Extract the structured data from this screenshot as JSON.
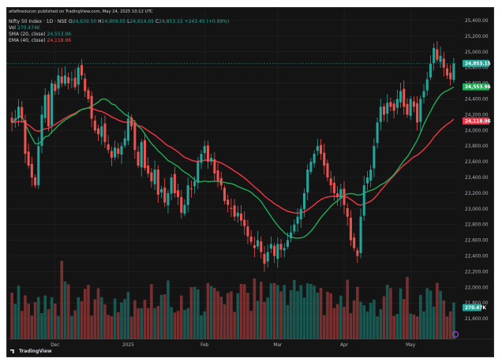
{
  "publisher_line": "alfafineducon published on TradingView.com, May 24, 2025 10:12 UTC",
  "legend": {
    "symbol": "Nifty 50 Index · 1D · NSE",
    "ohlc": [
      {
        "label": "O",
        "value": "24,639.50"
      },
      {
        "label": "H",
        "value": "24,909.05"
      },
      {
        "label": "L",
        "value": "24,614.05"
      },
      {
        "label": "C",
        "value": "24,853.15"
      }
    ],
    "change": "+243.45 (+0.99%)",
    "vol_label": "Vol",
    "vol_value": "270.474K",
    "sma_label": "SMA (20, close)",
    "sma_value": "24,553.96",
    "ema_label": "EMA (40, close)",
    "ema_value": "24,118.96"
  },
  "colors": {
    "up": "#26a69a",
    "down": "#ef5350",
    "sma": "#22ab57",
    "ema": "#f23645",
    "background": "#141414",
    "grid": "#232323",
    "text": "#d1d4dc"
  },
  "brand": "TradingView",
  "chart_data": {
    "type": "candlestick",
    "y_axis_ticks": [
      25400,
      25200,
      25000,
      24800,
      24600,
      24400,
      24200,
      24000,
      23800,
      23600,
      23400,
      23200,
      23000,
      22800,
      22600,
      22400,
      22200,
      22000,
      21800,
      21600
    ],
    "y_axis_tick_labels": [
      "25,400.00",
      "25,200.00",
      "25,000.00",
      "24,800.00",
      "24,600.00",
      "24,400.00",
      "24,200.00",
      "24,000.00",
      "23,800.00",
      "23,600.00",
      "23,400.00",
      "23,200.00",
      "23,000.00",
      "22,800.00",
      "22,600.00",
      "22,400.00",
      "22,200.00",
      "22,000.00",
      "21,800.00",
      "21,600.00"
    ],
    "ylim": [
      21400,
      25500
    ],
    "x_axis_labels": [
      {
        "label": "Dec",
        "index": 13
      },
      {
        "label": "2025",
        "index": 35
      },
      {
        "label": "Feb",
        "index": 58
      },
      {
        "label": "Mar",
        "index": 80
      },
      {
        "label": "Apr",
        "index": 100
      },
      {
        "label": "May",
        "index": 120
      }
    ],
    "price_labels": [
      {
        "series": "Last price",
        "value": 24853.15,
        "text": "24,853.15"
      },
      {
        "series": "SMA (20, close)",
        "value": 24553.96,
        "text": "24,553.96"
      },
      {
        "series": "EMA (40, close)",
        "value": 24118.96,
        "text": "24,118.96"
      }
    ],
    "volume_label": "270.47K",
    "closes": [
      24100,
      24150,
      24300,
      24150,
      23700,
      23550,
      23400,
      23300,
      23800,
      24200,
      24450,
      24050,
      24600,
      24500,
      24700,
      24600,
      24700,
      24600,
      24650,
      24550,
      24800,
      24700,
      24500,
      24400,
      24150,
      24000,
      23950,
      24050,
      23850,
      23750,
      23650,
      23780,
      23700,
      23800,
      23900,
      24150,
      24050,
      23750,
      23550,
      23850,
      23520,
      23450,
      23350,
      23500,
      23180,
      23250,
      23080,
      23200,
      23400,
      23200,
      23150,
      22950,
      23050,
      23300,
      23250,
      23350,
      23600,
      23700,
      23800,
      23600,
      23650,
      23450,
      23350,
      23300,
      23100,
      23050,
      23000,
      22900,
      22950,
      22850,
      22780,
      22650,
      22580,
      22500,
      22600,
      22450,
      22300,
      22450,
      22550,
      22400,
      22550,
      22480,
      22500,
      22600,
      22700,
      22800,
      22900,
      23000,
      23200,
      23500,
      23600,
      23700,
      23800,
      23700,
      23550,
      23400,
      23300,
      23200,
      23150,
      23250,
      23050,
      22900,
      22600,
      22500,
      22400,
      22900,
      23300,
      23400,
      23500,
      23800,
      24100,
      24300,
      24200,
      24350,
      24300,
      24250,
      24400,
      24500,
      24300,
      24200,
      24400,
      24300,
      24100,
      24400,
      24500,
      24650,
      24850,
      25050,
      24900,
      24950,
      24800,
      24700,
      24650,
      24850
    ]
  }
}
